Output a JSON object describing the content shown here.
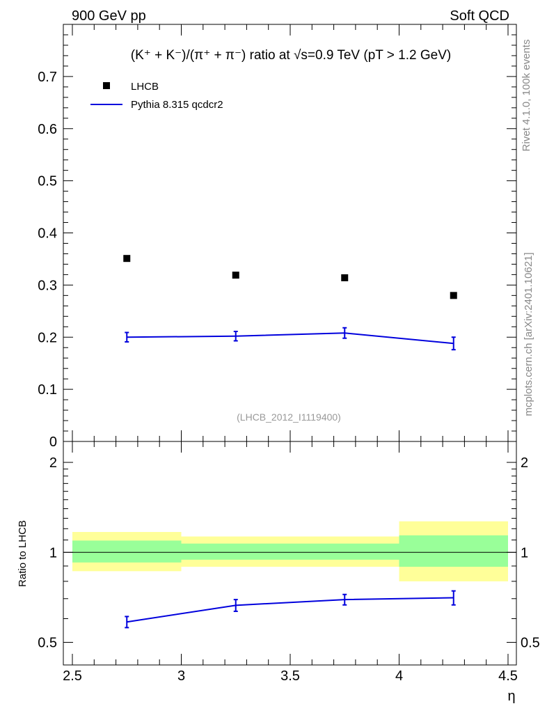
{
  "header": {
    "left": "900 GeV pp",
    "right": "Soft QCD"
  },
  "side_labels": {
    "rivet": "Rivet 4.1.0,  100k events",
    "mcplots": "mcplots.cern.ch [arXiv:2401.10621]"
  },
  "chart_data": {
    "type": "scatter",
    "title": "(K⁺ + K⁻)/(π⁺ + π⁻) ratio at √s=0.9 TeV (pT > 1.2 GeV)",
    "analysis_id": "(LHCB_2012_I1119400)",
    "xlabel": "η",
    "xlim": [
      2.5,
      4.5
    ],
    "x_ticks": [
      "2.5",
      "3",
      "3.5",
      "4",
      "4.5"
    ],
    "main": {
      "ylim": [
        0,
        0.8
      ],
      "y_ticks": [
        "0",
        "0.1",
        "0.2",
        "0.3",
        "0.4",
        "0.5",
        "0.6",
        "0.7"
      ],
      "legend": [
        {
          "label": "LHCB",
          "marker": "square",
          "color": "#000000"
        },
        {
          "label": "Pythia 8.315 qcdcr2",
          "marker": "line",
          "color": "#0000dd"
        }
      ],
      "series": [
        {
          "name": "LHCB",
          "color": "#000000",
          "points": [
            {
              "x": 2.75,
              "y": 0.351,
              "xlo": 2.5,
              "xhi": 3.0
            },
            {
              "x": 3.25,
              "y": 0.319,
              "xlo": 3.0,
              "xhi": 3.5
            },
            {
              "x": 3.75,
              "y": 0.314,
              "xlo": 3.5,
              "xhi": 4.0
            },
            {
              "x": 4.25,
              "y": 0.28,
              "xlo": 4.0,
              "xhi": 4.5
            }
          ]
        },
        {
          "name": "Pythia 8.315 qcdcr2",
          "color": "#0000dd",
          "points": [
            {
              "x": 2.75,
              "y": 0.2,
              "err": 0.009
            },
            {
              "x": 3.25,
              "y": 0.202,
              "err": 0.009
            },
            {
              "x": 3.75,
              "y": 0.208,
              "err": 0.01
            },
            {
              "x": 4.25,
              "y": 0.188,
              "err": 0.012
            }
          ]
        }
      ]
    },
    "ratio": {
      "ylabel": "Ratio to LHCB",
      "scale": "log",
      "ylim": [
        0.42,
        2.35
      ],
      "y_ticks": [
        "0.5",
        "1",
        "2"
      ],
      "bands": [
        {
          "xlo": 2.5,
          "xhi": 3.0,
          "stat": [
            0.925,
            1.095
          ],
          "total": [
            0.865,
            1.17
          ]
        },
        {
          "xlo": 3.0,
          "xhi": 3.5,
          "stat": [
            0.945,
            1.07
          ],
          "total": [
            0.895,
            1.13
          ]
        },
        {
          "xlo": 3.5,
          "xhi": 4.0,
          "stat": [
            0.945,
            1.07
          ],
          "total": [
            0.895,
            1.13
          ]
        },
        {
          "xlo": 4.0,
          "xhi": 4.5,
          "stat": [
            0.895,
            1.14
          ],
          "total": [
            0.8,
            1.27
          ]
        }
      ],
      "series": [
        {
          "name": "Pythia 8.315 qcdcr2",
          "color": "#0000dd",
          "points": [
            {
              "x": 2.75,
              "y": 0.585,
              "err": 0.025
            },
            {
              "x": 3.25,
              "y": 0.665,
              "err": 0.03
            },
            {
              "x": 3.75,
              "y": 0.695,
              "err": 0.028
            },
            {
              "x": 4.25,
              "y": 0.705,
              "err": 0.038
            }
          ]
        }
      ]
    },
    "colors": {
      "band_total": "#ffff99",
      "band_stat": "#99ff99",
      "mc": "#0000dd",
      "data": "#000000"
    }
  }
}
